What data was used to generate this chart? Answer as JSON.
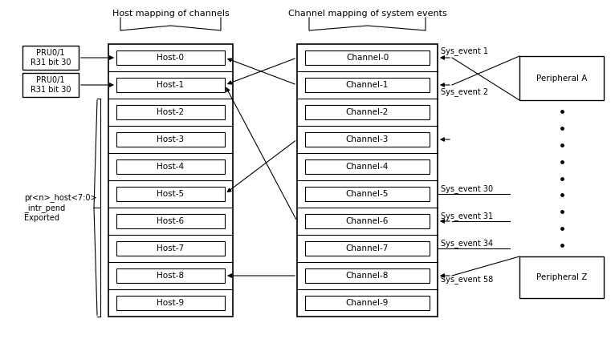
{
  "title_left": "Host mapping of channels",
  "title_right": "Channel mapping of system events",
  "hosts": [
    "Host-0",
    "Host-1",
    "Host-2",
    "Host-3",
    "Host-4",
    "Host-5",
    "Host-6",
    "Host-7",
    "Host-8",
    "Host-9"
  ],
  "channels": [
    "Channel-0",
    "Channel-1",
    "Channel-2",
    "Channel-3",
    "Channel-4",
    "Channel-5",
    "Channel-6",
    "Channel-7",
    "Channel-8",
    "Channel-9"
  ],
  "pru_boxes": [
    {
      "label": "PRU0/1\nR31 bit 30",
      "host_idx": 0
    },
    {
      "label": "PRU0/1\nR31 bit 30",
      "host_idx": 1
    }
  ],
  "left_brace_label": "pr<n>_host<7:0>\n_intr_pend\nExported",
  "peripheral_A_label": "Peripheral A",
  "peripheral_Z_label": "Peripheral Z",
  "arrows_ch_to_host": [
    [
      0,
      1
    ],
    [
      1,
      0
    ],
    [
      3,
      5
    ],
    [
      6,
      1
    ],
    [
      8,
      8
    ]
  ],
  "sys_event_arrows_into_ch": [
    0,
    1,
    3,
    6,
    8
  ],
  "bg_color": "#ffffff",
  "line_color": "#000000",
  "font_size": 7.5
}
